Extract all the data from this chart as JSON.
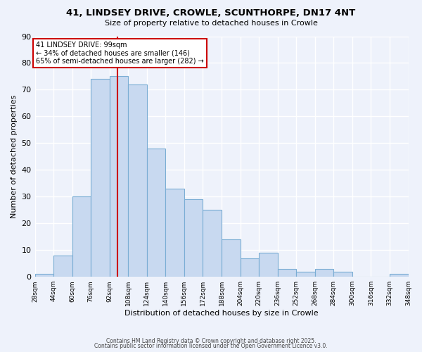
{
  "title": "41, LINDSEY DRIVE, CROWLE, SCUNTHORPE, DN17 4NT",
  "subtitle": "Size of property relative to detached houses in Crowle",
  "xlabel": "Distribution of detached houses by size in Crowle",
  "ylabel": "Number of detached properties",
  "bar_color": "#c8d9f0",
  "bar_edge_color": "#7aadd4",
  "background_color": "#eef2fb",
  "grid_color": "#ffffff",
  "bin_edges": [
    28,
    44,
    60,
    76,
    92,
    108,
    124,
    140,
    156,
    172,
    188,
    204,
    220,
    236,
    252,
    268,
    284,
    300,
    316,
    332,
    348
  ],
  "counts": [
    1,
    8,
    30,
    74,
    75,
    72,
    48,
    33,
    29,
    25,
    14,
    7,
    9,
    3,
    2,
    3,
    2,
    0,
    0,
    1
  ],
  "property_size": 99,
  "vline_color": "#cc0000",
  "annotation_text": "41 LINDSEY DRIVE: 99sqm\n← 34% of detached houses are smaller (146)\n65% of semi-detached houses are larger (282) →",
  "annotation_box_color": "#ffffff",
  "annotation_box_edge_color": "#cc0000",
  "ylim": [
    0,
    90
  ],
  "yticks": [
    0,
    10,
    20,
    30,
    40,
    50,
    60,
    70,
    80,
    90
  ],
  "footer1": "Contains HM Land Registry data © Crown copyright and database right 2025.",
  "footer2": "Contains public sector information licensed under the Open Government Licence v3.0.",
  "tick_labels": [
    "28sqm",
    "44sqm",
    "60sqm",
    "76sqm",
    "92sqm",
    "108sqm",
    "124sqm",
    "140sqm",
    "156sqm",
    "172sqm",
    "188sqm",
    "204sqm",
    "220sqm",
    "236sqm",
    "252sqm",
    "268sqm",
    "284sqm",
    "300sqm",
    "316sqm",
    "332sqm",
    "348sqm"
  ]
}
